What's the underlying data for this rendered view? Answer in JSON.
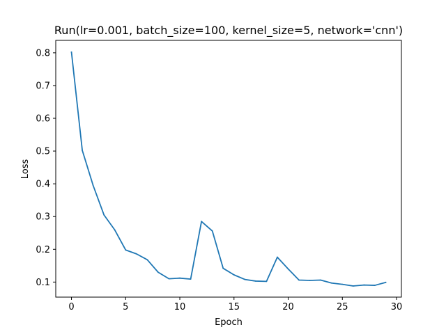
{
  "chart_data": {
    "type": "line",
    "title": "Run(lr=0.001, batch_size=100, kernel_size=5, network='cnn')",
    "xlabel": "Epoch",
    "ylabel": "Loss",
    "xlim": [
      -1.45,
      30.45
    ],
    "ylim": [
      0.054,
      0.838
    ],
    "xticks": [
      0,
      5,
      10,
      15,
      20,
      25,
      30
    ],
    "yticks": [
      0.1,
      0.2,
      0.3,
      0.4,
      0.5,
      0.6,
      0.7,
      0.8
    ],
    "grid": false,
    "legend": "none",
    "series": [
      {
        "color": "#1f77b4",
        "x": [
          0,
          1,
          2,
          3,
          4,
          5,
          6,
          7,
          8,
          9,
          10,
          11,
          12,
          13,
          14,
          15,
          16,
          17,
          18,
          19,
          20,
          21,
          22,
          23,
          24,
          25,
          26,
          27,
          28,
          29
        ],
        "y": [
          0.802,
          0.502,
          0.395,
          0.305,
          0.259,
          0.198,
          0.186,
          0.168,
          0.13,
          0.11,
          0.112,
          0.109,
          0.285,
          0.256,
          0.142,
          0.122,
          0.108,
          0.103,
          0.102,
          0.176,
          0.14,
          0.106,
          0.105,
          0.106,
          0.097,
          0.093,
          0.088,
          0.091,
          0.09,
          0.099
        ]
      }
    ]
  }
}
